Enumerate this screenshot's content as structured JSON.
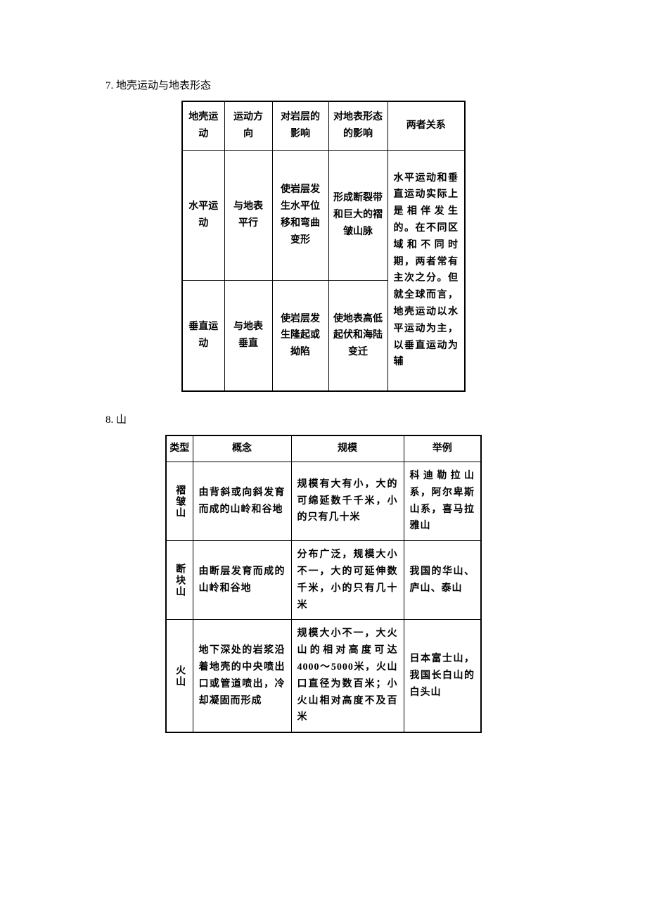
{
  "section7": {
    "number": "7.",
    "title": "地壳运动与地表形态",
    "table": {
      "columns": [
        "地壳运动",
        "运动方向",
        "对岩层的影响",
        "对地表形态的影响",
        "两者关系"
      ],
      "rows": [
        {
          "c1": "水平运动",
          "c2": "与地表平行",
          "c3": "使岩层发生水平位移和弯曲变形",
          "c4": "形成断裂带和巨大的褶皱山脉"
        },
        {
          "c1": "垂直运动",
          "c2": "与地表垂直",
          "c3": "使岩层发生隆起或拗陷",
          "c4": "使地表高低起伏和海陆变迁"
        }
      ],
      "merged_c5": "水平运动和垂直运动实际上是相伴发生的。在不同区域和不同时期，两者常有主次之分。但就全球而言，地壳运动以水平运动为主，以垂直运动为辅"
    }
  },
  "section8": {
    "number": "8.",
    "title": "山",
    "table": {
      "columns": [
        "类型",
        "概念",
        "规模",
        "举例"
      ],
      "rows": [
        {
          "type": "褶皱山",
          "concept": "由背斜或向斜发育而成的山岭和谷地",
          "scale": "规模有大有小，大的可绵延数千千米，小的只有几十米",
          "example": "科迪勒拉山系，阿尔卑斯山系，喜马拉雅山"
        },
        {
          "type": "断块山",
          "concept": "由断层发育而成的山岭和谷地",
          "scale": "分布广泛，规模大小不一，大的可延伸数千米，小的只有几十米",
          "example": "我国的华山、庐山、泰山"
        },
        {
          "type": "火山",
          "concept": "地下深处的岩浆沿着地壳的中央喷出口或管道喷出，冷却凝固而形成",
          "scale": "规模大小不一，大火山的相对高度可达 4000～5000米，火山口直径为数百米；小火山相对高度不及百米",
          "example": "日本富士山，我国长白山的白头山"
        }
      ]
    }
  }
}
